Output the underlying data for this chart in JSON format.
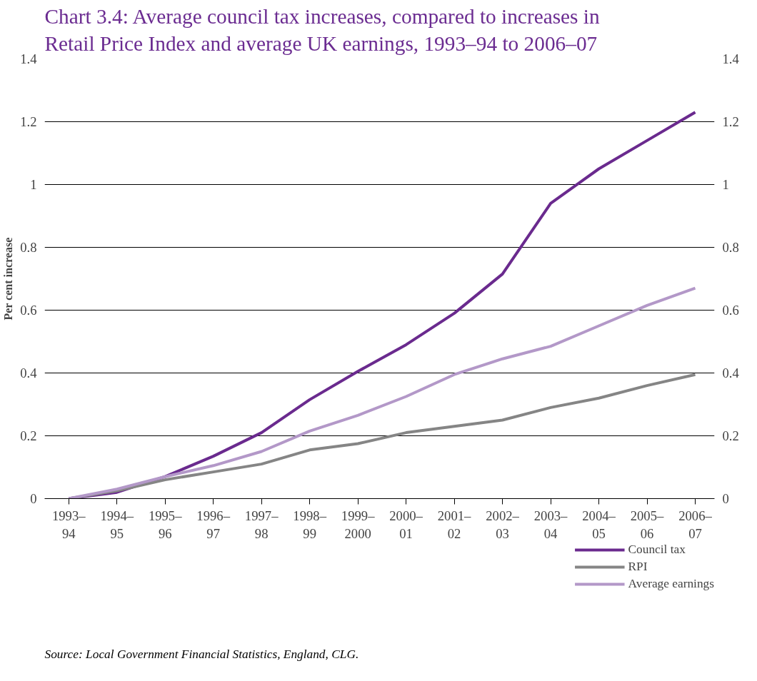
{
  "chart_data": {
    "type": "line",
    "title": "Chart 3.4: Average council tax increases, compared to increases in Retail Price Index and average UK earnings, 1993–94 to 2006–07",
    "ylabel": "Per cent increase",
    "categories": [
      "1993–94",
      "1994–95",
      "1995–96",
      "1996–97",
      "1997–98",
      "1998–99",
      "1999–2000",
      "2000–01",
      "2001–02",
      "2002–03",
      "2003–04",
      "2004–05",
      "2005–06",
      "2006–07"
    ],
    "series": [
      {
        "name": "Council tax",
        "color": "#6a2a8e",
        "values": [
          0,
          0.02,
          0.07,
          0.135,
          0.21,
          0.315,
          0.405,
          0.49,
          0.59,
          0.715,
          0.94,
          1.05,
          1.14,
          1.23
        ]
      },
      {
        "name": "RPI",
        "color": "#858585",
        "values": [
          0,
          0.025,
          0.06,
          0.085,
          0.11,
          0.155,
          0.175,
          0.21,
          0.23,
          0.25,
          0.29,
          0.32,
          0.36,
          0.395
        ]
      },
      {
        "name": "Average earnings",
        "color": "#b398c8",
        "values": [
          0,
          0.03,
          0.07,
          0.105,
          0.15,
          0.215,
          0.265,
          0.325,
          0.395,
          0.445,
          0.485,
          0.55,
          0.615,
          0.67
        ]
      }
    ],
    "ylim": [
      0,
      1.4
    ],
    "yticks": [
      0,
      {
        "value": 0.2,
        "label": "0.2"
      },
      {
        "value": 0.4,
        "label": "0.4"
      },
      {
        "value": 0.6,
        "label": "0.6"
      },
      {
        "value": 0.8,
        "label": "0.8"
      },
      1,
      {
        "value": 1.2,
        "label": "1.2"
      },
      {
        "value": 1.4,
        "label": "1.4"
      }
    ],
    "y2lim": [
      0,
      1.4
    ],
    "y2ticks": [
      0,
      {
        "value": 0.2,
        "label": "0.2"
      },
      {
        "value": 0.4,
        "label": "0.4"
      },
      {
        "value": 0.6,
        "label": "0.6"
      },
      {
        "value": 0.8,
        "label": "0.8"
      },
      1,
      {
        "value": 1.2,
        "label": "1.2"
      },
      {
        "value": 1.4,
        "label": "1.4"
      }
    ],
    "grid": "y",
    "legend": "bottom right",
    "marker": "none",
    "line_style": "solid",
    "annotations": [
      "Source: Local Government Financial Statistics, England, CLG."
    ]
  }
}
